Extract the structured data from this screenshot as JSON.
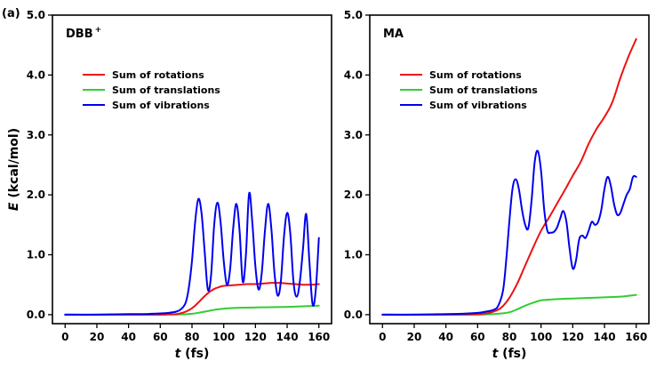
{
  "panel_label": "(a)",
  "chart_data": [
    {
      "type": "line",
      "title": "DBB",
      "title_superscript": "+",
      "xlabel_italic": "t",
      "xlabel_rest": " (fs)",
      "ylabel_italic": "E",
      "ylabel_rest": " (kcal/mol)",
      "xlim": [
        -8,
        168
      ],
      "ylim": [
        -0.15,
        5.0
      ],
      "xticks": [
        0,
        20,
        40,
        60,
        80,
        100,
        120,
        140,
        160
      ],
      "xtick_labels": [
        "0",
        "20",
        "40",
        "60",
        "80",
        "100",
        "120",
        "140",
        "160"
      ],
      "yticks": [
        0,
        1,
        2,
        3,
        4,
        5
      ],
      "ytick_labels": [
        "0.0",
        "1.0",
        "2.0",
        "3.0",
        "4.0",
        "5.0"
      ],
      "legend_position": "upper-left",
      "series": [
        {
          "name": "Sum of rotations",
          "color": "#ee1111",
          "x": [
            0,
            20,
            40,
            60,
            65,
            70,
            73,
            76,
            79,
            82,
            85,
            88,
            91,
            94,
            97,
            100,
            105,
            110,
            115,
            120,
            125,
            130,
            135,
            140,
            145,
            150,
            155,
            160
          ],
          "y": [
            0,
            0,
            0,
            0,
            0.005,
            0.01,
            0.025,
            0.05,
            0.09,
            0.15,
            0.23,
            0.31,
            0.38,
            0.43,
            0.46,
            0.48,
            0.49,
            0.5,
            0.51,
            0.51,
            0.52,
            0.53,
            0.53,
            0.52,
            0.51,
            0.5,
            0.5,
            0.51
          ]
        },
        {
          "name": "Sum of translations",
          "color": "#33cc33",
          "x": [
            0,
            20,
            40,
            60,
            70,
            75,
            80,
            85,
            90,
            95,
            100,
            105,
            110,
            120,
            130,
            140,
            150,
            160
          ],
          "y": [
            0,
            0,
            0,
            0,
            0.002,
            0.006,
            0.015,
            0.035,
            0.06,
            0.085,
            0.1,
            0.11,
            0.115,
            0.12,
            0.125,
            0.13,
            0.14,
            0.15
          ]
        },
        {
          "name": "Sum of vibrations",
          "color": "#0000ee",
          "x": [
            0,
            20,
            40,
            50,
            60,
            65,
            70,
            73,
            76,
            78,
            80,
            82,
            84,
            86,
            88,
            90,
            92,
            94,
            96,
            98,
            100,
            102,
            104,
            106,
            108,
            110,
            112,
            114,
            116,
            118,
            120,
            122,
            124,
            126,
            128,
            130,
            132,
            134,
            136,
            138,
            140,
            142,
            144,
            146,
            148,
            150,
            152,
            154,
            156,
            158,
            160
          ],
          "y": [
            0,
            0,
            0.01,
            0.01,
            0.02,
            0.03,
            0.05,
            0.09,
            0.2,
            0.45,
            0.9,
            1.55,
            1.93,
            1.7,
            1.05,
            0.42,
            0.65,
            1.5,
            1.87,
            1.55,
            0.9,
            0.5,
            0.75,
            1.45,
            1.85,
            1.4,
            0.55,
            1.0,
            2.02,
            1.55,
            0.8,
            0.42,
            0.7,
            1.4,
            1.85,
            1.45,
            0.7,
            0.32,
            0.55,
            1.3,
            1.7,
            1.35,
            0.55,
            0.3,
            0.55,
            1.1,
            1.68,
            0.9,
            0.18,
            0.4,
            1.28
          ]
        }
      ]
    },
    {
      "type": "line",
      "title": "MA",
      "title_superscript": "",
      "xlabel_italic": "t",
      "xlabel_rest": " (fs)",
      "ylabel_italic": "",
      "ylabel_rest": "",
      "xlim": [
        -8,
        168
      ],
      "ylim": [
        -0.15,
        5.0
      ],
      "xticks": [
        0,
        20,
        40,
        60,
        80,
        100,
        120,
        140,
        160
      ],
      "xtick_labels": [
        "0",
        "20",
        "40",
        "60",
        "80",
        "100",
        "120",
        "140",
        "160"
      ],
      "yticks": [
        0,
        1,
        2,
        3,
        4,
        5
      ],
      "ytick_labels": [
        "0.0",
        "1.0",
        "2.0",
        "3.0",
        "4.0",
        "5.0"
      ],
      "legend_position": "upper-left",
      "series": [
        {
          "name": "Sum of rotations",
          "color": "#ee1111",
          "x": [
            0,
            20,
            40,
            60,
            65,
            70,
            75,
            80,
            85,
            90,
            95,
            100,
            105,
            110,
            115,
            120,
            125,
            130,
            135,
            140,
            145,
            150,
            155,
            160
          ],
          "y": [
            0,
            0,
            0,
            0.01,
            0.02,
            0.05,
            0.12,
            0.28,
            0.52,
            0.82,
            1.12,
            1.4,
            1.62,
            1.85,
            2.08,
            2.32,
            2.55,
            2.85,
            3.1,
            3.3,
            3.55,
            3.95,
            4.3,
            4.6
          ]
        },
        {
          "name": "Sum of translations",
          "color": "#33cc33",
          "x": [
            0,
            20,
            40,
            60,
            70,
            75,
            80,
            85,
            90,
            95,
            100,
            105,
            110,
            120,
            130,
            140,
            150,
            160
          ],
          "y": [
            0,
            0,
            0,
            0,
            0.01,
            0.02,
            0.04,
            0.09,
            0.15,
            0.2,
            0.24,
            0.25,
            0.26,
            0.27,
            0.28,
            0.29,
            0.3,
            0.33
          ]
        },
        {
          "name": "Sum of vibrations",
          "color": "#0000ee",
          "x": [
            0,
            20,
            40,
            50,
            60,
            65,
            70,
            73,
            76,
            78,
            80,
            82,
            84,
            86,
            88,
            90,
            92,
            94,
            96,
            98,
            100,
            102,
            104,
            106,
            108,
            110,
            112,
            114,
            116,
            118,
            120,
            122,
            124,
            126,
            128,
            130,
            132,
            134,
            136,
            138,
            140,
            142,
            144,
            146,
            148,
            150,
            152,
            154,
            156,
            158,
            160
          ],
          "y": [
            0,
            0,
            0.01,
            0.015,
            0.03,
            0.05,
            0.08,
            0.15,
            0.4,
            0.9,
            1.55,
            2.1,
            2.26,
            2.1,
            1.75,
            1.5,
            1.45,
            1.9,
            2.55,
            2.73,
            2.4,
            1.75,
            1.4,
            1.37,
            1.38,
            1.45,
            1.6,
            1.73,
            1.55,
            1.1,
            0.77,
            0.9,
            1.25,
            1.32,
            1.28,
            1.4,
            1.55,
            1.5,
            1.55,
            1.75,
            2.1,
            2.3,
            2.15,
            1.85,
            1.67,
            1.7,
            1.85,
            2.0,
            2.1,
            2.3,
            2.3
          ]
        }
      ]
    }
  ]
}
